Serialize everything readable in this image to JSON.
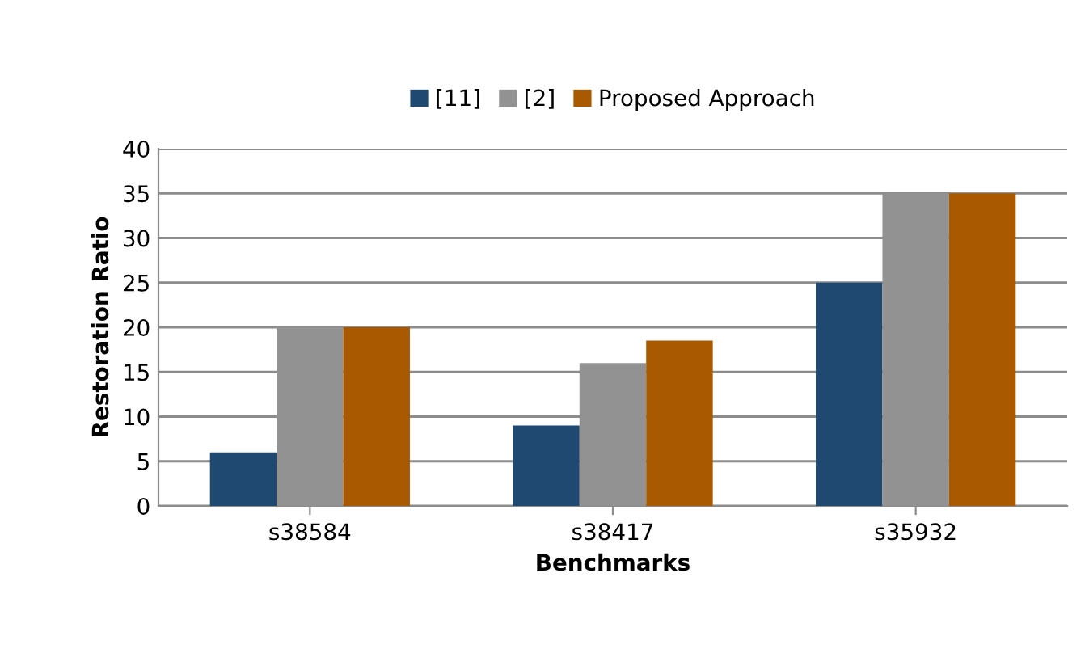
{
  "chart_data": {
    "type": "bar",
    "xlabel": "Benchmarks",
    "ylabel": "Restoration Ratio",
    "categories": [
      "s38584",
      "s38417",
      "s35932"
    ],
    "series": [
      {
        "name": "[11]",
        "color": "#1f4970",
        "values": [
          6,
          9,
          25
        ]
      },
      {
        "name": "[2]",
        "color": "#929292",
        "values": [
          20,
          16,
          35
        ]
      },
      {
        "name": "Proposed Approach",
        "color": "#a95a00",
        "values": [
          20,
          18.5,
          35
        ]
      }
    ],
    "ylim": [
      0,
      40
    ],
    "yticks": [
      0,
      5,
      10,
      15,
      20,
      25,
      30,
      35,
      40
    ],
    "grid": "y",
    "legend": "top"
  }
}
